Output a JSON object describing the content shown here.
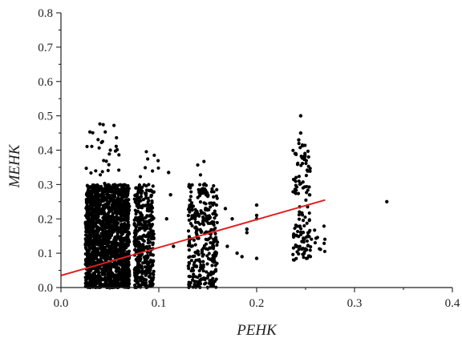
{
  "chart_data": {
    "type": "scatter",
    "title": "",
    "xlabel": "PEHK",
    "ylabel": "MEHK",
    "xlim": [
      0.0,
      0.4
    ],
    "ylim": [
      0.0,
      0.8
    ],
    "x_ticks": [
      "0.0",
      "0.1",
      "0.2",
      "0.3",
      "0.4"
    ],
    "y_ticks": [
      "0.0",
      "0.1",
      "0.2",
      "0.3",
      "0.4",
      "0.5",
      "0.6",
      "0.7",
      "0.8"
    ],
    "grid": false,
    "legend": "none",
    "colors": {
      "points": "#000000",
      "fit_line": "#e02020",
      "axes": "#222222"
    },
    "series": [
      {
        "kind": "points",
        "clusters": [
          {
            "x_range": [
              0.025,
              0.07
            ],
            "y_range": [
              0.0,
              0.3
            ],
            "count": 1800
          },
          {
            "x_range": [
              0.025,
              0.06
            ],
            "y_range": [
              0.3,
              0.48
            ],
            "count": 30
          },
          {
            "x_range": [
              0.075,
              0.095
            ],
            "y_range": [
              0.0,
              0.3
            ],
            "count": 420
          },
          {
            "x_range": [
              0.08,
              0.1
            ],
            "y_range": [
              0.28,
              0.41
            ],
            "count": 8
          },
          {
            "x_range": [
              0.13,
              0.16
            ],
            "y_range": [
              0.0,
              0.3
            ],
            "count": 320
          },
          {
            "x_range": [
              0.135,
              0.15
            ],
            "y_range": [
              0.3,
              0.37
            ],
            "count": 4
          },
          {
            "x_range": [
              0.237,
              0.255
            ],
            "y_range": [
              0.08,
              0.42
            ],
            "count": 130
          },
          {
            "x_range": [
              0.255,
              0.27
            ],
            "y_range": [
              0.1,
              0.2
            ],
            "count": 12
          }
        ],
        "extra_points": [
          [
            0.245,
            0.5
          ],
          [
            0.245,
            0.45
          ],
          [
            0.243,
            0.43
          ],
          [
            0.333,
            0.25
          ],
          [
            0.2,
            0.085
          ],
          [
            0.2,
            0.24
          ],
          [
            0.2,
            0.21
          ],
          [
            0.2,
            0.2
          ],
          [
            0.19,
            0.17
          ],
          [
            0.19,
            0.16
          ],
          [
            0.18,
            0.1
          ],
          [
            0.185,
            0.09
          ],
          [
            0.11,
            0.335
          ],
          [
            0.112,
            0.27
          ],
          [
            0.108,
            0.2
          ],
          [
            0.115,
            0.12
          ],
          [
            0.17,
            0.12
          ],
          [
            0.175,
            0.2
          ],
          [
            0.168,
            0.23
          ]
        ]
      },
      {
        "kind": "fit_line",
        "x": [
          0.0,
          0.27
        ],
        "y": [
          0.035,
          0.255
        ]
      }
    ]
  }
}
